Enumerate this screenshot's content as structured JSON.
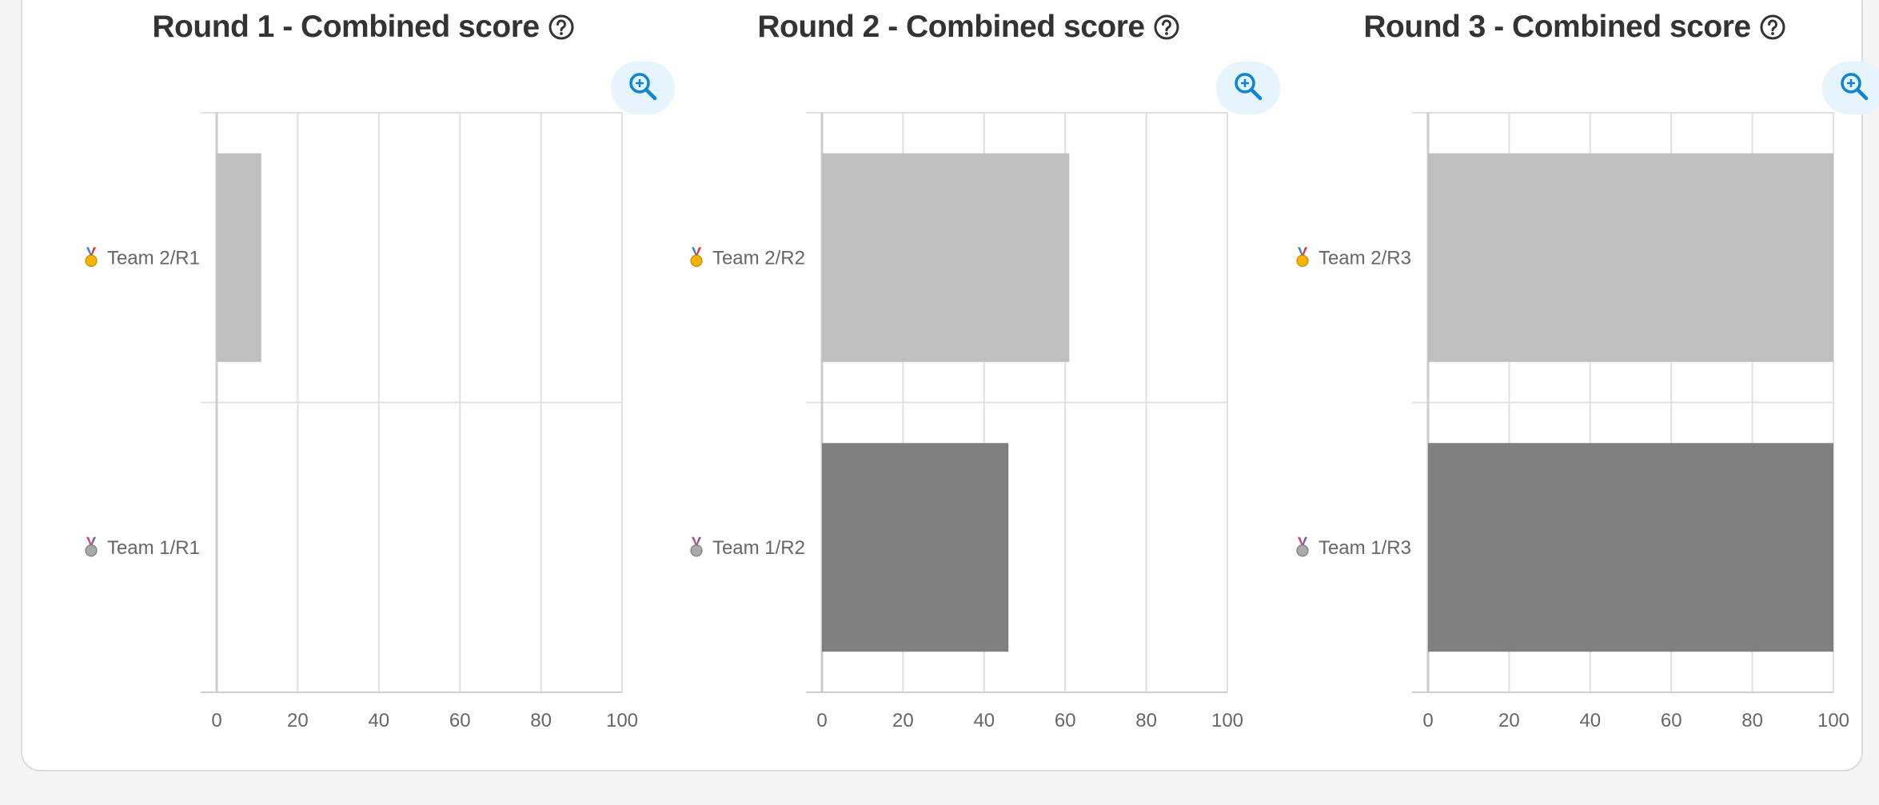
{
  "colors": {
    "team2_bar": "#bfbfbf",
    "team1_bar": "#808080",
    "zoom_accent": "#0a84d6",
    "zoom_bg": "#e6f4fd"
  },
  "icons": {
    "help": "help-circle-icon",
    "zoom": "zoom-in-icon",
    "gold": "gold-medal-icon",
    "silver": "silver-medal-icon"
  },
  "chart_data": [
    {
      "type": "bar",
      "orientation": "horizontal",
      "title": "Round 1 - Combined score",
      "categories": [
        "Team 2/R1",
        "Team 1/R1"
      ],
      "medals": [
        "gold",
        "silver"
      ],
      "values": [
        11,
        0
      ],
      "xlim": [
        0,
        100
      ],
      "xticks": [
        "0",
        "20",
        "40",
        "60",
        "80",
        "100"
      ],
      "grid": true
    },
    {
      "type": "bar",
      "orientation": "horizontal",
      "title": "Round 2 - Combined score",
      "categories": [
        "Team 2/R2",
        "Team 1/R2"
      ],
      "medals": [
        "gold",
        "silver"
      ],
      "values": [
        61,
        46
      ],
      "xlim": [
        0,
        100
      ],
      "xticks": [
        "0",
        "20",
        "40",
        "60",
        "80",
        "100"
      ],
      "grid": true
    },
    {
      "type": "bar",
      "orientation": "horizontal",
      "title": "Round 3 - Combined score",
      "categories": [
        "Team 2/R3",
        "Team 1/R3"
      ],
      "medals": [
        "gold",
        "silver"
      ],
      "values": [
        100,
        100
      ],
      "xlim": [
        0,
        100
      ],
      "xticks": [
        "0",
        "20",
        "40",
        "60",
        "80",
        "100"
      ],
      "grid": true
    }
  ]
}
